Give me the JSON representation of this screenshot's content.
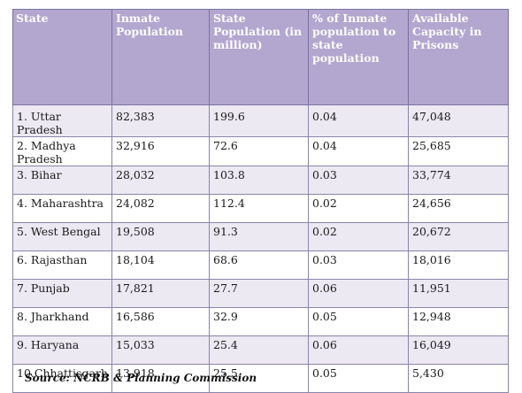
{
  "table": {
    "headers": [
      "State",
      "Inmate Population",
      "State Population (in million)",
      "% of Inmate population to state population",
      "Available Capacity in Prisons"
    ],
    "rows": [
      [
        "1. Uttar Pradesh",
        "82,383",
        "199.6",
        "0.04",
        "47,048"
      ],
      [
        "2. Madhya Pradesh",
        "32,916",
        "72.6",
        "0.04",
        "25,685"
      ],
      [
        "3. Bihar",
        "28,032",
        "103.8",
        "0.03",
        "33,774"
      ],
      [
        "4. Maharashtra",
        "24,082",
        "112.4",
        "0.02",
        "24,656"
      ],
      [
        "5. West Bengal",
        "19,508",
        "91.3",
        "0.02",
        "20,672"
      ],
      [
        "6. Rajasthan",
        "18,104",
        "68.6",
        "0.03",
        "18,016"
      ],
      [
        "7. Punjab",
        "17,821",
        "27.7",
        "0.06",
        "11,951"
      ],
      [
        "8. Jharkhand",
        "16,586",
        "32.9",
        "0.05",
        "12,948"
      ],
      [
        "9. Haryana",
        "15,033",
        "25.4",
        "0.06",
        "16,049"
      ],
      [
        "10.Chhattisgarh",
        "13,918",
        "25.5",
        "0.05",
        "5,430"
      ]
    ]
  },
  "source": "Source: NCRB & Planning Commission",
  "colors": {
    "header_background": "#b3a6cf",
    "header_text": "#ffffff",
    "row_alt_background": "#ece9f3",
    "border": "#8a84a8"
  }
}
